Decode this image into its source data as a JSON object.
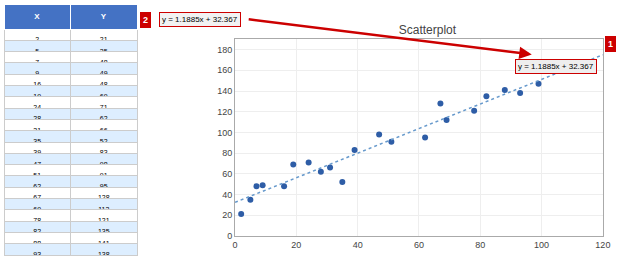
{
  "chart_data": {
    "type": "scatter",
    "title": "Scatterplot",
    "series": [
      {
        "type": "scatter",
        "color": "#2E5DA6",
        "marker": "circle",
        "x": [
          2,
          5,
          7,
          9,
          16,
          19,
          24,
          28,
          31,
          35,
          39,
          47,
          51,
          62,
          67,
          69,
          78,
          82,
          88,
          93,
          99
        ],
        "values": [
          21,
          35,
          48,
          49,
          48,
          69,
          71,
          62,
          66,
          52,
          83,
          98,
          91,
          95,
          128,
          112,
          121,
          135,
          141,
          138,
          147
        ]
      },
      {
        "type": "line",
        "color": "#6699CC",
        "line_style": "dotted",
        "x": [
          0,
          120
        ],
        "values": [
          32.367,
          174.987
        ]
      }
    ],
    "xlim": [
      0,
      120
    ],
    "xticks": [
      0,
      20,
      40,
      60,
      80,
      100,
      120
    ],
    "ylim": [
      0,
      190
    ],
    "yticks": [
      0,
      20,
      40,
      60,
      80,
      100,
      120,
      140,
      160,
      180
    ],
    "grid": true,
    "table": {
      "columns": [
        "X",
        "Y"
      ],
      "header_color": "#4472C4",
      "colors": [
        "#FFFFFF",
        "#DDEEFF"
      ]
    },
    "annotations": [
      {
        "text": "y = 1.1885x + 32.367",
        "color": "#CC0000"
      },
      {
        "text": "2",
        "color": "#CC0000"
      },
      {
        "text": "y = 1.1885x + 32.367",
        "color": "#CC0000"
      },
      {
        "text": "1",
        "color": "#CC0000"
      }
    ]
  }
}
